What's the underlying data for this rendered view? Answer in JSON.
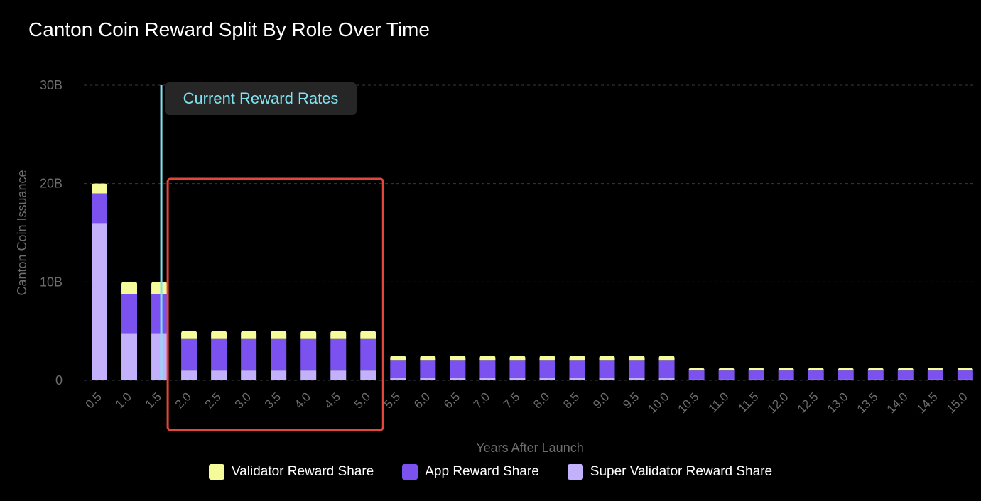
{
  "chart_data": {
    "type": "bar",
    "stacked": true,
    "title": "Canton Coin Reward Split By Role Over Time",
    "xlabel": "Years After Launch",
    "ylabel": "Canton Coin Issuance",
    "ylim": [
      0,
      30000000000
    ],
    "yticks": [
      0,
      10000000000,
      20000000000,
      30000000000
    ],
    "ytick_labels": [
      "0",
      "10B",
      "20B",
      "30B"
    ],
    "grid": true,
    "legend_position": "bottom",
    "categories": [
      "0.5",
      "1.0",
      "1.5",
      "2.0",
      "2.5",
      "3.0",
      "3.5",
      "4.0",
      "4.5",
      "5.0",
      "5.5",
      "6.0",
      "6.5",
      "7.0",
      "7.5",
      "8.0",
      "8.5",
      "9.0",
      "9.5",
      "10.0",
      "10.5",
      "11.0",
      "11.5",
      "12.0",
      "12.5",
      "13.0",
      "13.5",
      "14.0",
      "14.5",
      "15.0"
    ],
    "series": [
      {
        "name": "Super Validator Reward Share",
        "color": "#c4b1fb",
        "values": [
          16000000000,
          4800000000,
          4800000000,
          1000000000,
          1000000000,
          1000000000,
          1000000000,
          1000000000,
          1000000000,
          1000000000,
          250000000,
          250000000,
          250000000,
          250000000,
          250000000,
          250000000,
          250000000,
          250000000,
          250000000,
          250000000,
          100000000,
          100000000,
          100000000,
          100000000,
          100000000,
          100000000,
          100000000,
          100000000,
          100000000,
          100000000
        ]
      },
      {
        "name": "App Reward Share",
        "color": "#7b52f0",
        "values": [
          3000000000,
          3950000000,
          3950000000,
          3200000000,
          3200000000,
          3200000000,
          3200000000,
          3200000000,
          3200000000,
          3200000000,
          1750000000,
          1750000000,
          1750000000,
          1750000000,
          1750000000,
          1750000000,
          1750000000,
          1750000000,
          1750000000,
          1750000000,
          900000000,
          900000000,
          900000000,
          900000000,
          900000000,
          900000000,
          900000000,
          900000000,
          900000000,
          900000000
        ]
      },
      {
        "name": "Validator Reward Share",
        "color": "#f6fb9a",
        "values": [
          1000000000,
          1250000000,
          1250000000,
          800000000,
          800000000,
          800000000,
          800000000,
          800000000,
          800000000,
          800000000,
          500000000,
          500000000,
          500000000,
          500000000,
          500000000,
          500000000,
          500000000,
          500000000,
          500000000,
          500000000,
          250000000,
          250000000,
          250000000,
          250000000,
          250000000,
          250000000,
          250000000,
          250000000,
          250000000,
          250000000
        ]
      }
    ],
    "legend_order": [
      "Validator Reward Share",
      "App Reward Share",
      "Super Validator Reward Share"
    ],
    "annotations": [
      {
        "type": "vertical-line",
        "x": 1.5,
        "label": "Current Reward Rates",
        "color": "#7fe3f0"
      },
      {
        "type": "highlight-box",
        "x_from": "2.0",
        "x_to": "5.0",
        "color": "#e5463b"
      }
    ]
  }
}
